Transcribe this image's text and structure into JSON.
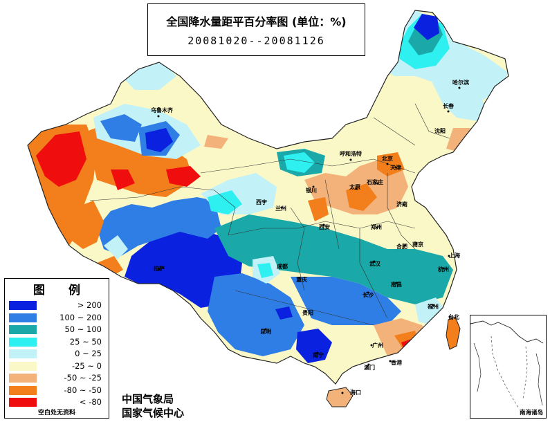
{
  "title": {
    "main": "全国降水量距平百分率图 (单位：%)",
    "date_range": "20081020--20081126"
  },
  "legend": {
    "title": "图 例",
    "items": [
      {
        "label": "> 200",
        "color": "#0a22e0"
      },
      {
        "label": "100 ~ 200",
        "color": "#2f7ee6"
      },
      {
        "label": "50 ~ 100",
        "color": "#1aa8a8"
      },
      {
        "label": "25 ~ 50",
        "color": "#2ef0f0"
      },
      {
        "label": "0 ~ 25",
        "color": "#c2f2f7"
      },
      {
        "label": "-25 ~ 0",
        "color": "#fbf8c8"
      },
      {
        "label": "-50 ~ -25",
        "color": "#f3b27a"
      },
      {
        "label": "-80 ~ -50",
        "color": "#f27e1c"
      },
      {
        "label": "< -80",
        "color": "#f00d0d"
      }
    ],
    "note": "空白处无资料"
  },
  "organizations": [
    "中国气象局",
    "国家气候中心"
  ],
  "inset": {
    "label": "南海诸岛"
  },
  "cities": [
    {
      "name": "乌鲁木齐"
    },
    {
      "name": "哈尔滨"
    },
    {
      "name": "长春"
    },
    {
      "name": "沈阳"
    },
    {
      "name": "呼和浩特"
    },
    {
      "name": "北京"
    },
    {
      "name": "天津"
    },
    {
      "name": "银川"
    },
    {
      "name": "太原"
    },
    {
      "name": "石家庄"
    },
    {
      "name": "济南"
    },
    {
      "name": "西宁"
    },
    {
      "name": "兰州"
    },
    {
      "name": "郑州"
    },
    {
      "name": "西安"
    },
    {
      "name": "合肥"
    },
    {
      "name": "南京"
    },
    {
      "name": "上海"
    },
    {
      "name": "拉萨"
    },
    {
      "name": "成都"
    },
    {
      "name": "武汉"
    },
    {
      "name": "杭州"
    },
    {
      "name": "重庆"
    },
    {
      "name": "长沙"
    },
    {
      "name": "南昌"
    },
    {
      "name": "福州"
    },
    {
      "name": "贵阳"
    },
    {
      "name": "昆明"
    },
    {
      "name": "南宁"
    },
    {
      "name": "广州"
    },
    {
      "name": "澳门"
    },
    {
      "name": "香港"
    },
    {
      "name": "台北"
    },
    {
      "name": "海口"
    }
  ]
}
